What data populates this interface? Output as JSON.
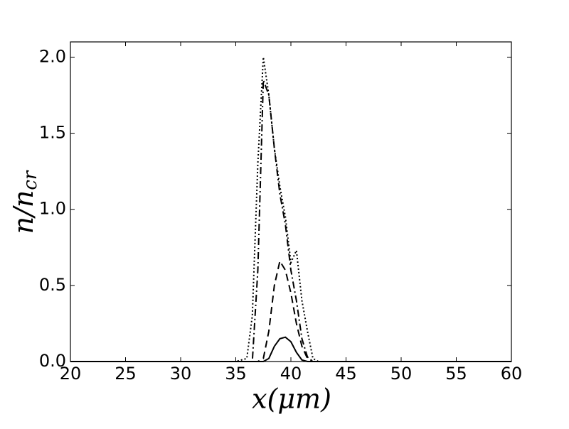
{
  "chart_data": {
    "type": "line",
    "xlabel": "x(μm)",
    "ylabel": "n/n",
    "ylabel_sub": "cr",
    "x": [
      20,
      35,
      36,
      36.5,
      37,
      37.5,
      38,
      38.5,
      39,
      39.5,
      40,
      40.5,
      41,
      41.5,
      42,
      42.5,
      43,
      60
    ],
    "series": [
      {
        "color": "#000000",
        "dash": "solid",
        "values": [
          0,
          0,
          0,
          0,
          0,
          0,
          0.02,
          0.1,
          0.15,
          0.16,
          0.13,
          0.06,
          0.01,
          0,
          0,
          0,
          0,
          0
        ]
      },
      {
        "color": "#000000",
        "dash": "dashed",
        "values": [
          0,
          0,
          0,
          0,
          0,
          0.02,
          0.2,
          0.5,
          0.66,
          0.6,
          0.45,
          0.25,
          0.1,
          0.02,
          0,
          0,
          0,
          0
        ]
      },
      {
        "color": "#000000",
        "dash": "dashdot",
        "values": [
          0,
          0,
          0,
          0,
          0.6,
          1.85,
          1.75,
          1.4,
          1.1,
          0.9,
          0.6,
          0.4,
          0.15,
          0.03,
          0,
          0,
          0,
          0
        ]
      },
      {
        "color": "#000000",
        "dash": "dotted",
        "values": [
          0,
          0,
          0.02,
          0.3,
          1.3,
          2.0,
          1.75,
          1.4,
          1.15,
          0.95,
          0.65,
          0.73,
          0.4,
          0.2,
          0.02,
          0,
          0,
          0
        ]
      }
    ],
    "xlim": [
      20,
      60
    ],
    "xticks": [
      20,
      25,
      30,
      35,
      40,
      45,
      50,
      55,
      60
    ],
    "ylim": [
      0,
      2.1
    ],
    "yticks": [
      {
        "value": 0,
        "label": "0.0"
      },
      {
        "value": 0.5,
        "label": "0.5"
      },
      {
        "value": 1,
        "label": "1.0"
      },
      {
        "value": 1.5,
        "label": "1.5"
      },
      {
        "value": 2,
        "label": "2.0"
      }
    ],
    "grid": false
  }
}
